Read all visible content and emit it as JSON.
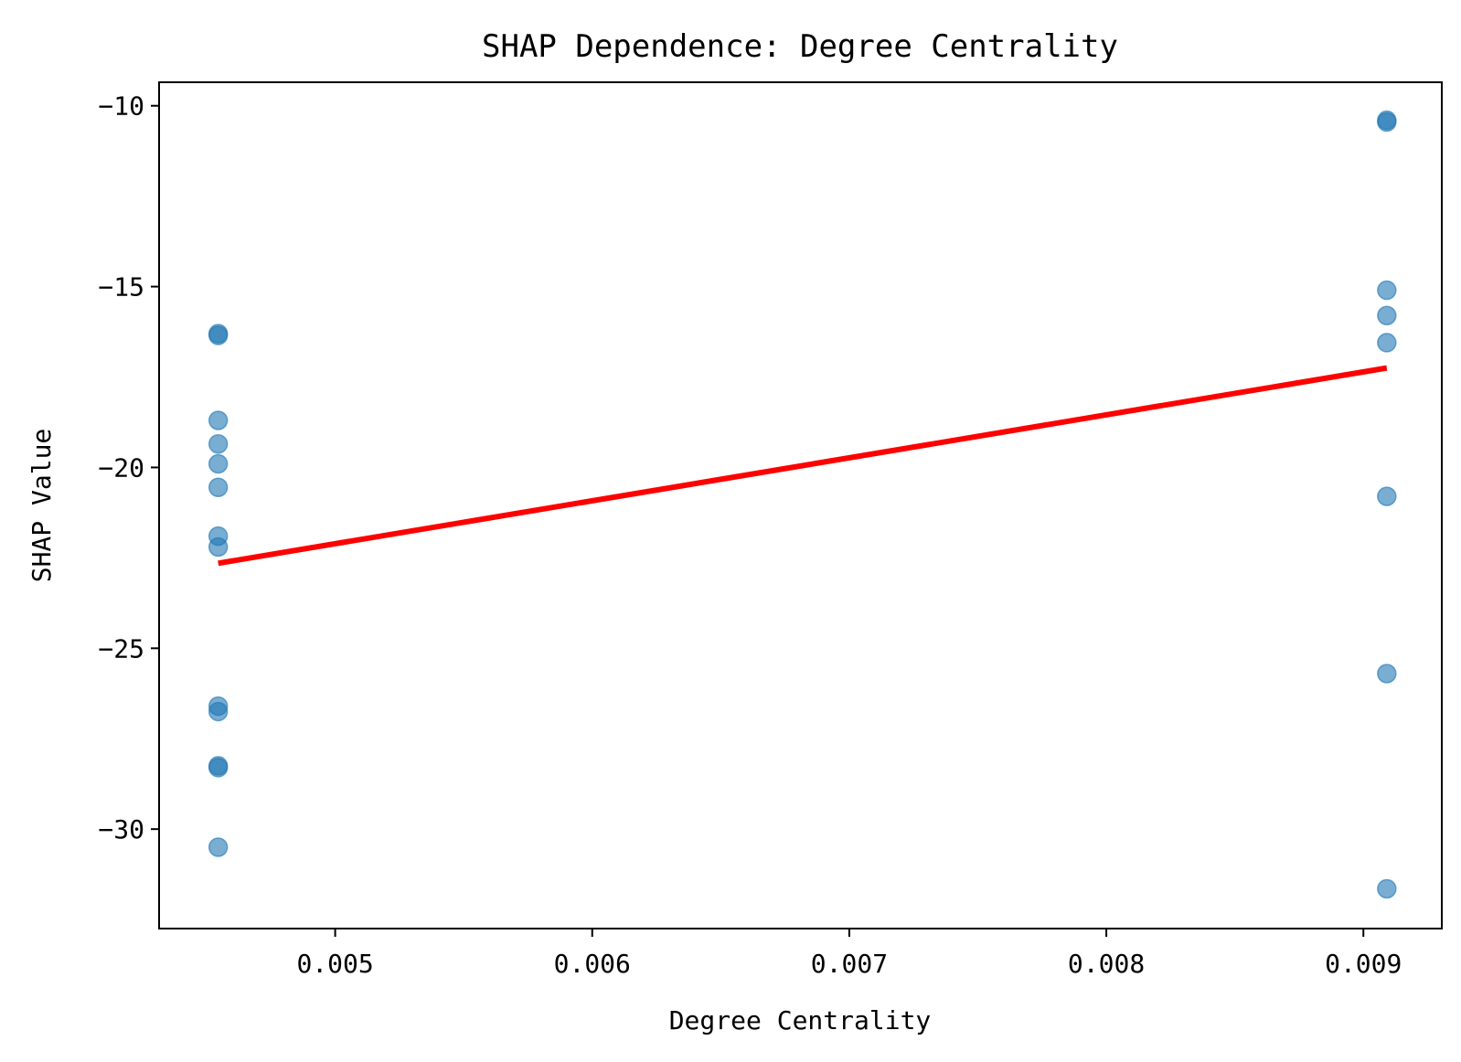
{
  "chart_data": {
    "type": "scatter",
    "title": "SHAP Dependence: Degree Centrality",
    "xlabel": "Degree Centrality",
    "ylabel": "SHAP Value",
    "xlim": [
      0.004315,
      0.009305
    ],
    "ylim": [
      -32.75,
      -9.35
    ],
    "xticks": [
      0.005,
      0.006,
      0.007,
      0.008,
      0.009
    ],
    "xtick_labels": [
      "0.005",
      "0.006",
      "0.007",
      "0.008",
      "0.009"
    ],
    "yticks": [
      -10,
      -15,
      -20,
      -25,
      -30
    ],
    "ytick_labels": [
      "−10",
      "−15",
      "−20",
      "−25",
      "−30"
    ],
    "grid": false,
    "series": [
      {
        "name": "SHAP values",
        "color": "#1f77b4",
        "alpha": 0.6,
        "points": [
          {
            "x": 0.004545,
            "y": -16.3
          },
          {
            "x": 0.004545,
            "y": -16.35
          },
          {
            "x": 0.004545,
            "y": -18.7
          },
          {
            "x": 0.004545,
            "y": -19.35
          },
          {
            "x": 0.004545,
            "y": -19.9
          },
          {
            "x": 0.004545,
            "y": -20.55
          },
          {
            "x": 0.004545,
            "y": -21.9
          },
          {
            "x": 0.004545,
            "y": -22.2
          },
          {
            "x": 0.004545,
            "y": -26.6
          },
          {
            "x": 0.004545,
            "y": -26.75
          },
          {
            "x": 0.004545,
            "y": -28.25
          },
          {
            "x": 0.004545,
            "y": -28.3
          },
          {
            "x": 0.004545,
            "y": -30.5
          },
          {
            "x": 0.009091,
            "y": -10.4
          },
          {
            "x": 0.009091,
            "y": -10.45
          },
          {
            "x": 0.009091,
            "y": -15.1
          },
          {
            "x": 0.009091,
            "y": -15.8
          },
          {
            "x": 0.009091,
            "y": -16.55
          },
          {
            "x": 0.009091,
            "y": -20.8
          },
          {
            "x": 0.009091,
            "y": -25.7
          },
          {
            "x": 0.009091,
            "y": -31.65
          }
        ]
      }
    ],
    "trend_line": {
      "color": "#ff0000",
      "x": [
        0.004545,
        0.009091
      ],
      "y": [
        -22.65,
        -17.25
      ]
    }
  }
}
